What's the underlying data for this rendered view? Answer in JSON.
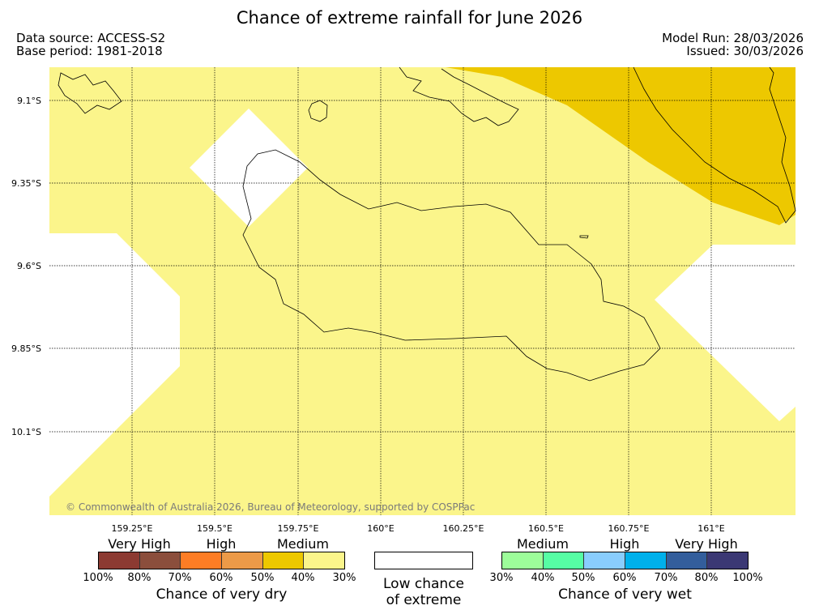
{
  "title": "Chance of extreme rainfall for June 2026",
  "source": {
    "data_source": "Data source: ACCESS-S2",
    "base_period": "Base period: 1981-2018"
  },
  "run": {
    "model_run": "Model Run: 28/03/2026",
    "issued": "Issued: 30/03/2026"
  },
  "map": {
    "lat_labels": [
      "9.1°S",
      "9.35°S",
      "9.6°S",
      "9.85°S",
      "10.1°S"
    ],
    "lon_labels": [
      "159.25°E",
      "159.5°E",
      "159.75°E",
      "160°E",
      "160.25°E",
      "160.5°E",
      "160.75°E",
      "161°E"
    ],
    "credit": "© Commonwealth of Australia 2026, Bureau of Meteorology, supported by COSPPac",
    "colors": {
      "medium_dry": "#fbf58b",
      "high_dry_40_50": "#edc800",
      "low": "#ffffff",
      "coast": "#000000"
    }
  },
  "legend": {
    "dry": {
      "categories": [
        "Very High",
        "High",
        "Medium"
      ],
      "colors": [
        "#8c3a32",
        "#8b4e3c",
        "#fd7d25",
        "#ec9a48",
        "#edc800",
        "#fbf58b"
      ],
      "ticks": [
        "100%",
        "80%",
        "70%",
        "60%",
        "50%",
        "40%",
        "30%"
      ],
      "caption": "Chance of very dry"
    },
    "low": {
      "caption_line1": "Low chance",
      "caption_line2": "of extreme"
    },
    "wet": {
      "categories": [
        "Medium",
        "High",
        "Very High"
      ],
      "colors": [
        "#9dfd9a",
        "#56fda4",
        "#89cdfd",
        "#00b0eb",
        "#335e9c",
        "#3b3874"
      ],
      "ticks": [
        "30%",
        "40%",
        "50%",
        "60%",
        "70%",
        "80%",
        "100%"
      ],
      "caption": "Chance of very wet"
    }
  }
}
